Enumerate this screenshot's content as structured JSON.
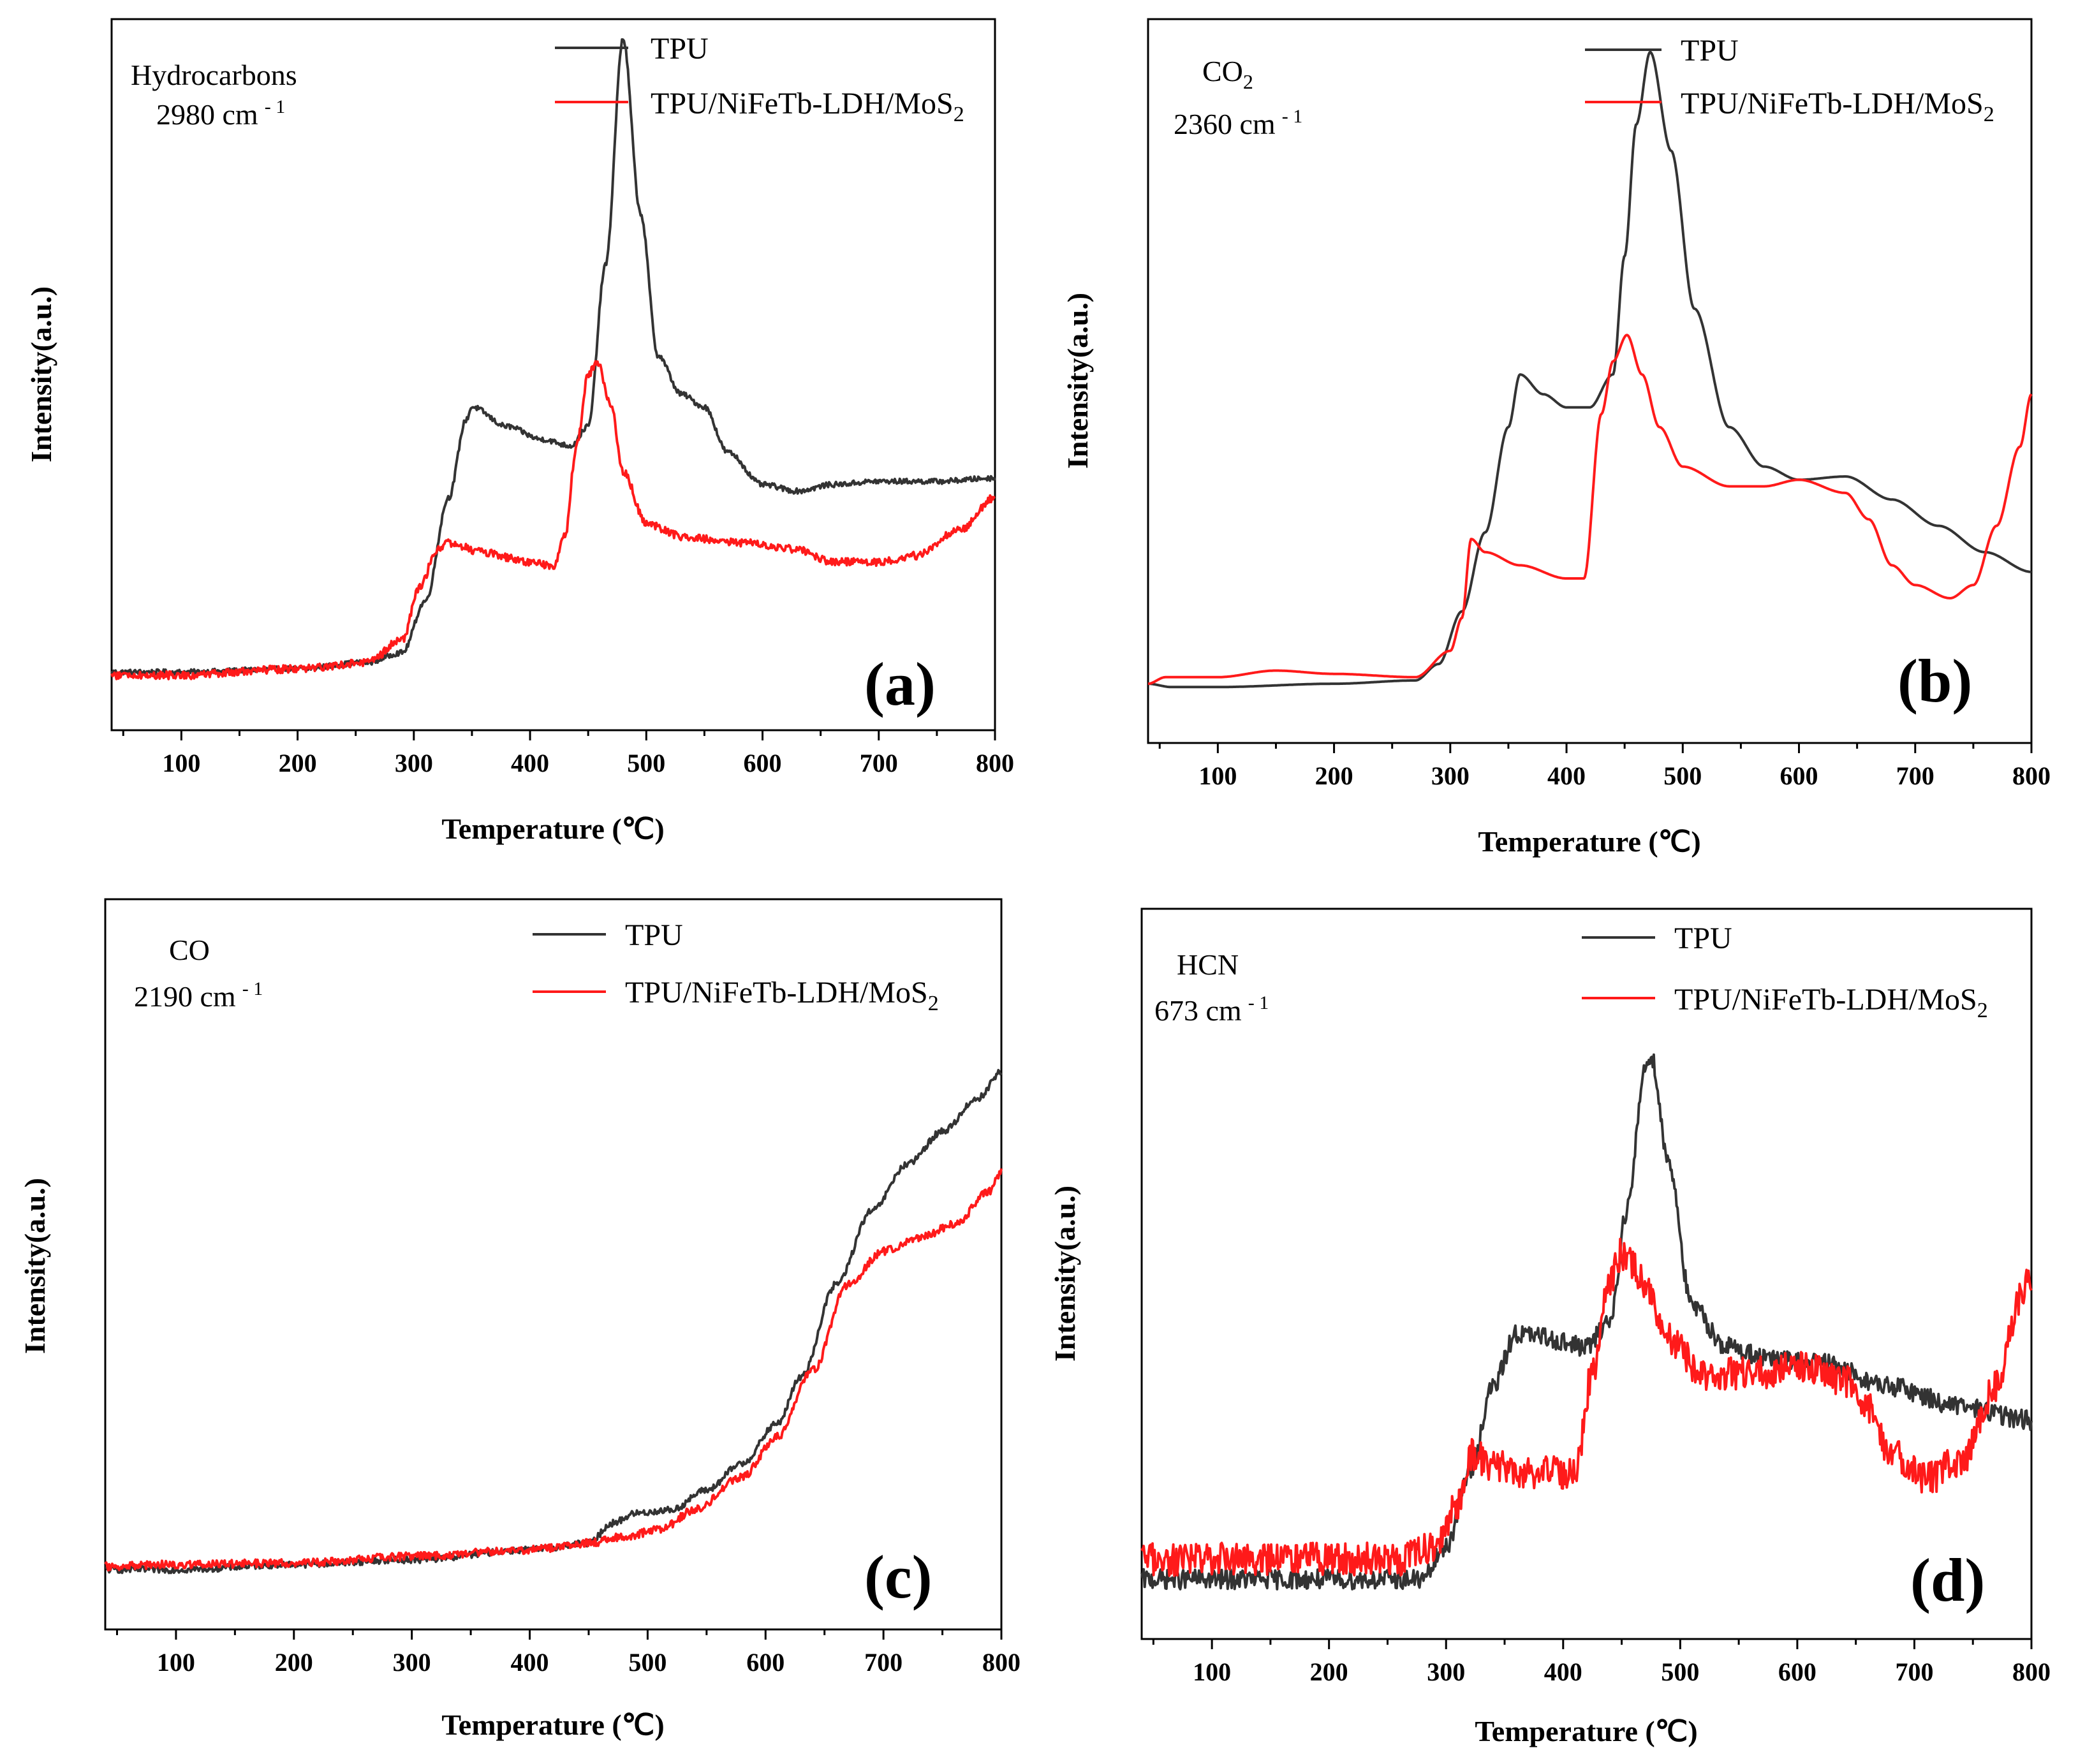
{
  "colors": {
    "tpu": "#333333",
    "composite": "#ff1a1a",
    "axis": "#000000"
  },
  "legend": {
    "tpu": "TPU",
    "composite_main": "TPU/NiFeTb-LDH/MoS",
    "composite_sub": "2"
  },
  "x_ticks": [
    100,
    200,
    300,
    400,
    500,
    600,
    700,
    800
  ],
  "chart_data": [
    {
      "type": "line",
      "panel": "(a)",
      "title": "Hydrocarbons",
      "title_sub": "",
      "wavenumber": "2980 cm",
      "wavenumber_sup": "- 1",
      "xlabel": "Temperature (℃)",
      "ylabel": "Intensity(a.u.)",
      "xlim": [
        40,
        800
      ],
      "ylim": [
        0,
        110
      ],
      "noise": [
        0.4,
        0.6
      ],
      "series": [
        {
          "name": "TPU",
          "points": [
            [
              40,
              9
            ],
            [
              100,
              9
            ],
            [
              200,
              9.5
            ],
            [
              260,
              10.5
            ],
            [
              290,
              12
            ],
            [
              310,
              20
            ],
            [
              330,
              36
            ],
            [
              345,
              48
            ],
            [
              350,
              50
            ],
            [
              380,
              47
            ],
            [
              410,
              45
            ],
            [
              435,
              44
            ],
            [
              450,
              47
            ],
            [
              465,
              72
            ],
            [
              480,
              107
            ],
            [
              495,
              80
            ],
            [
              510,
              58
            ],
            [
              530,
              52
            ],
            [
              550,
              50
            ],
            [
              570,
              43
            ],
            [
              600,
              38
            ],
            [
              630,
              37
            ],
            [
              660,
              38
            ],
            [
              700,
              38.5
            ],
            [
              750,
              38.5
            ],
            [
              800,
              39
            ]
          ]
        },
        {
          "name": "TPU/NiFeTb-LDH/MoS2",
          "points": [
            [
              40,
              8.5
            ],
            [
              100,
              8.5
            ],
            [
              200,
              9.5
            ],
            [
              260,
              10.5
            ],
            [
              290,
              14
            ],
            [
              305,
              22
            ],
            [
              320,
              28
            ],
            [
              330,
              29
            ],
            [
              360,
              27.5
            ],
            [
              400,
              26
            ],
            [
              420,
              25.5
            ],
            [
              430,
              30
            ],
            [
              440,
              44
            ],
            [
              450,
              55
            ],
            [
              458,
              57
            ],
            [
              470,
              50
            ],
            [
              480,
              40
            ],
            [
              500,
              32
            ],
            [
              530,
              30
            ],
            [
              580,
              29
            ],
            [
              630,
              28
            ],
            [
              660,
              26
            ],
            [
              700,
              26
            ],
            [
              730,
              27
            ],
            [
              770,
              31
            ],
            [
              800,
              36
            ]
          ]
        }
      ]
    },
    {
      "type": "line",
      "panel": "(b)",
      "title": "CO",
      "title_sub": "2",
      "wavenumber": "2360 cm",
      "wavenumber_sup": "- 1",
      "xlabel": "Temperature (℃)",
      "ylabel": "Intensity(a.u.)",
      "xlim": [
        40,
        800
      ],
      "ylim": [
        0,
        110
      ],
      "noise": [
        0,
        0
      ],
      "series": [
        {
          "name": "TPU",
          "points": [
            [
              40,
              9
            ],
            [
              60,
              8.5
            ],
            [
              100,
              8.5
            ],
            [
              200,
              9
            ],
            [
              270,
              9.5
            ],
            [
              290,
              12
            ],
            [
              310,
              20
            ],
            [
              330,
              32
            ],
            [
              350,
              48
            ],
            [
              360,
              56
            ],
            [
              380,
              53
            ],
            [
              400,
              51
            ],
            [
              420,
              51
            ],
            [
              440,
              56
            ],
            [
              450,
              74
            ],
            [
              460,
              94
            ],
            [
              472,
              105
            ],
            [
              490,
              90
            ],
            [
              510,
              66
            ],
            [
              540,
              48
            ],
            [
              570,
              42
            ],
            [
              600,
              40
            ],
            [
              640,
              40.5
            ],
            [
              680,
              37
            ],
            [
              720,
              33
            ],
            [
              760,
              29
            ],
            [
              800,
              26
            ]
          ]
        },
        {
          "name": "TPU/NiFeTb-LDH/MoS2",
          "points": [
            [
              40,
              9
            ],
            [
              55,
              10
            ],
            [
              70,
              10
            ],
            [
              100,
              10
            ],
            [
              150,
              11
            ],
            [
              200,
              10.5
            ],
            [
              270,
              10
            ],
            [
              300,
              14
            ],
            [
              310,
              19
            ],
            [
              318,
              31
            ],
            [
              330,
              29
            ],
            [
              360,
              27
            ],
            [
              400,
              25
            ],
            [
              415,
              25
            ],
            [
              430,
              50
            ],
            [
              440,
              58
            ],
            [
              452,
              62
            ],
            [
              465,
              56
            ],
            [
              480,
              48
            ],
            [
              500,
              42
            ],
            [
              540,
              39
            ],
            [
              570,
              39
            ],
            [
              600,
              40
            ],
            [
              640,
              38
            ],
            [
              660,
              34
            ],
            [
              680,
              27
            ],
            [
              700,
              24
            ],
            [
              730,
              22
            ],
            [
              750,
              24
            ],
            [
              770,
              33
            ],
            [
              790,
              45
            ],
            [
              800,
              53
            ]
          ]
        }
      ]
    },
    {
      "type": "line",
      "panel": "(c)",
      "title": "CO",
      "title_sub": "",
      "wavenumber": "2190 cm",
      "wavenumber_sup": "- 1",
      "xlabel": "Temperature (℃)",
      "ylabel": "Intensity(a.u.)",
      "xlim": [
        40,
        800
      ],
      "ylim": [
        0,
        110
      ],
      "noise": [
        0.5,
        0.6
      ],
      "series": [
        {
          "name": "TPU",
          "points": [
            [
              40,
              9
            ],
            [
              100,
              9
            ],
            [
              200,
              9.8
            ],
            [
              300,
              10.5
            ],
            [
              400,
              12
            ],
            [
              450,
              13
            ],
            [
              470,
              16
            ],
            [
              490,
              17.5
            ],
            [
              520,
              18
            ],
            [
              550,
              21
            ],
            [
              580,
              25
            ],
            [
              610,
              31
            ],
            [
              630,
              38
            ],
            [
              660,
              52
            ],
            [
              690,
              63
            ],
            [
              720,
              70
            ],
            [
              750,
              75
            ],
            [
              780,
              80
            ],
            [
              800,
              84
            ]
          ]
        },
        {
          "name": "TPU/NiFeTb-LDH/MoS2",
          "points": [
            [
              40,
              9.5
            ],
            [
              100,
              9.8
            ],
            [
              200,
              10
            ],
            [
              300,
              11
            ],
            [
              400,
              12
            ],
            [
              450,
              13
            ],
            [
              480,
              14
            ],
            [
              510,
              15
            ],
            [
              540,
              18
            ],
            [
              580,
              23
            ],
            [
              610,
              29
            ],
            [
              640,
              39
            ],
            [
              670,
              52
            ],
            [
              700,
              57
            ],
            [
              730,
              59
            ],
            [
              760,
              61
            ],
            [
              790,
              66
            ],
            [
              800,
              69
            ]
          ]
        }
      ]
    },
    {
      "type": "line",
      "panel": "(d)",
      "title": "HCN",
      "title_sub": "",
      "wavenumber": "673 cm",
      "wavenumber_sup": "- 1",
      "xlabel": "Temperature (℃)",
      "ylabel": "Intensity(a.u.)",
      "xlim": [
        40,
        800
      ],
      "ylim": [
        0,
        110
      ],
      "noise": [
        1.5,
        2.5
      ],
      "series": [
        {
          "name": "TPU",
          "points": [
            [
              40,
              9
            ],
            [
              100,
              9
            ],
            [
              200,
              9
            ],
            [
              280,
              9
            ],
            [
              300,
              14
            ],
            [
              320,
              25
            ],
            [
              340,
              38
            ],
            [
              360,
              46
            ],
            [
              380,
              45.5
            ],
            [
              420,
              44
            ],
            [
              440,
              48
            ],
            [
              455,
              65
            ],
            [
              470,
              86
            ],
            [
              475,
              88
            ],
            [
              490,
              72
            ],
            [
              510,
              50
            ],
            [
              540,
              44
            ],
            [
              580,
              42
            ],
            [
              620,
              41.5
            ],
            [
              680,
              38
            ],
            [
              740,
              35
            ],
            [
              800,
              33
            ]
          ]
        },
        {
          "name": "TPU/NiFeTb-LDH/MoS2",
          "points": [
            [
              40,
              12
            ],
            [
              100,
              12
            ],
            [
              200,
              12
            ],
            [
              260,
              12
            ],
            [
              290,
              14
            ],
            [
              310,
              20
            ],
            [
              322,
              28
            ],
            [
              340,
              26
            ],
            [
              370,
              25
            ],
            [
              410,
              25
            ],
            [
              425,
              40
            ],
            [
              440,
              54
            ],
            [
              450,
              58
            ],
            [
              470,
              54
            ],
            [
              490,
              45
            ],
            [
              520,
              40
            ],
            [
              560,
              40
            ],
            [
              600,
              41
            ],
            [
              640,
              39
            ],
            [
              660,
              35
            ],
            [
              680,
              28
            ],
            [
              710,
              24
            ],
            [
              740,
              27
            ],
            [
              770,
              38
            ],
            [
              790,
              51
            ],
            [
              800,
              55
            ]
          ]
        }
      ]
    }
  ]
}
